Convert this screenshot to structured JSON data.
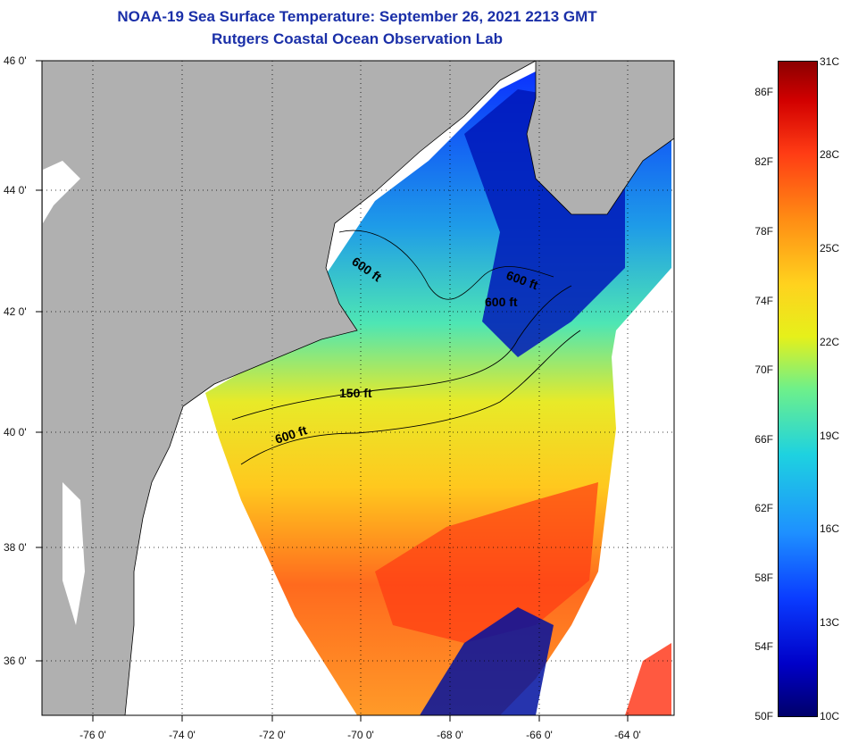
{
  "header": {
    "title": "NOAA-19 Sea Surface Temperature:  September 26, 2021 2213 GMT",
    "subtitle": "Rutgers Coastal Ocean Observation Lab"
  },
  "map": {
    "lat_ticks": [
      "46 0'",
      "44 0'",
      "42 0'",
      "40 0'",
      "38 0'",
      "36 0'"
    ],
    "lon_ticks": [
      "-76 0'",
      "-74 0'",
      "-72 0'",
      "-70 0'",
      "-68 0'",
      "-66 0'",
      "-64 0'"
    ],
    "lat_range": [
      35,
      46
    ],
    "lon_range": [
      -77,
      -63
    ],
    "contour_labels": {
      "c1": "600 ft",
      "c2": "600 ft",
      "c3": "600 ft",
      "c4": "150 ft",
      "c5": "600 ft"
    },
    "colors": {
      "land": "#b0b0b0",
      "no_data": "#ffffff",
      "coast": "#000000"
    }
  },
  "colorbar": {
    "fahrenheit": [
      "86F",
      "82F",
      "78F",
      "74F",
      "70F",
      "66F",
      "62F",
      "58F",
      "54F",
      "50F"
    ],
    "celsius": [
      "31C",
      "28C",
      "25C",
      "22C",
      "19C",
      "16C",
      "13C",
      "10C"
    ]
  }
}
